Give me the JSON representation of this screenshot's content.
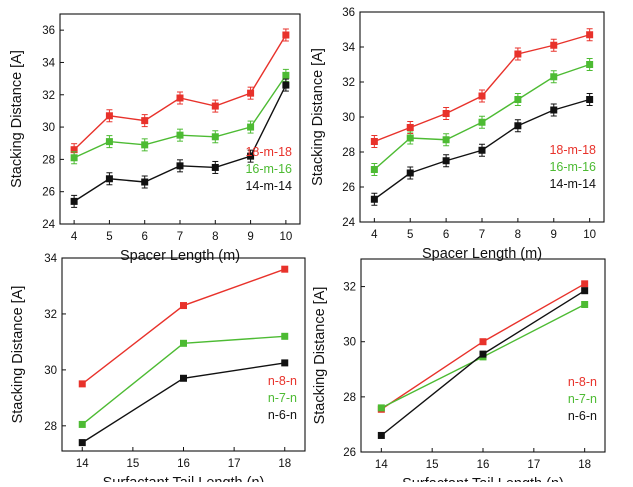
{
  "chart_data": [
    {
      "type": "line",
      "xlabel": "Spacer Length (m)",
      "ylabel": "Stacking Distance [A]",
      "xlim": [
        3.6,
        10.4
      ],
      "ylim": [
        24,
        37
      ],
      "xticks": [
        4,
        5,
        6,
        7,
        8,
        9,
        10
      ],
      "yticks": [
        24,
        26,
        28,
        30,
        32,
        34,
        36
      ],
      "x": [
        4,
        5,
        6,
        7,
        8,
        9,
        10
      ],
      "legend_position": "right",
      "marker": "square",
      "error_bars": true,
      "series": [
        {
          "name": "18-m-18",
          "color": "#e8322b",
          "values": [
            28.6,
            30.7,
            30.4,
            31.8,
            31.3,
            32.1,
            35.7
          ]
        },
        {
          "name": "16-m-16",
          "color": "#4dbb33",
          "values": [
            28.1,
            29.1,
            28.9,
            29.5,
            29.4,
            30.0,
            33.2
          ]
        },
        {
          "name": "14-m-14",
          "color": "#111111",
          "values": [
            25.4,
            26.8,
            26.6,
            27.6,
            27.5,
            28.2,
            32.6
          ]
        }
      ]
    },
    {
      "type": "line",
      "xlabel": "Spacer Length (m)",
      "ylabel": "Stacking Distance [A]",
      "xlim": [
        3.6,
        10.4
      ],
      "ylim": [
        24,
        36
      ],
      "xticks": [
        4,
        5,
        6,
        7,
        8,
        9,
        10
      ],
      "yticks": [
        24,
        26,
        28,
        30,
        32,
        34,
        36
      ],
      "x": [
        4,
        5,
        6,
        7,
        8,
        9,
        10
      ],
      "legend_position": "right",
      "marker": "square",
      "error_bars": true,
      "series": [
        {
          "name": "18-m-18",
          "color": "#e8322b",
          "values": [
            28.6,
            29.4,
            30.2,
            31.2,
            33.6,
            34.1,
            34.7
          ]
        },
        {
          "name": "16-m-16",
          "color": "#4dbb33",
          "values": [
            27.0,
            28.8,
            28.7,
            29.7,
            31.0,
            32.3,
            33.0
          ]
        },
        {
          "name": "14-m-14",
          "color": "#111111",
          "values": [
            25.3,
            26.8,
            27.5,
            28.1,
            29.5,
            30.4,
            31.0
          ]
        }
      ]
    },
    {
      "type": "line",
      "xlabel": "Surfactant Tail Length (n)",
      "ylabel": "Stacking Distance [A]",
      "xlim": [
        13.6,
        18.4
      ],
      "ylim": [
        27.1,
        34
      ],
      "xticks": [
        14,
        15,
        16,
        17,
        18
      ],
      "yticks": [
        28,
        30,
        32,
        34
      ],
      "x": [
        14,
        16,
        18
      ],
      "legend_position": "bottom-right",
      "marker": "square",
      "error_bars": false,
      "series": [
        {
          "name": "n-8-n",
          "color": "#e8322b",
          "values": [
            29.5,
            32.3,
            33.6
          ]
        },
        {
          "name": "n-7-n",
          "color": "#4dbb33",
          "values": [
            28.05,
            30.95,
            31.2
          ]
        },
        {
          "name": "n-6-n",
          "color": "#111111",
          "values": [
            27.4,
            29.7,
            30.25
          ]
        }
      ]
    },
    {
      "type": "line",
      "xlabel": "Surfactant Tail Length (n)",
      "ylabel": "Stacking Distance [A]",
      "xlim": [
        13.6,
        18.4
      ],
      "ylim": [
        26,
        33
      ],
      "xticks": [
        14,
        15,
        16,
        17,
        18
      ],
      "yticks": [
        26,
        28,
        30,
        32
      ],
      "x": [
        14,
        16,
        18
      ],
      "legend_position": "bottom-right",
      "marker": "square",
      "error_bars": false,
      "series": [
        {
          "name": "n-8-n",
          "color": "#e8322b",
          "values": [
            27.55,
            30.0,
            32.1
          ]
        },
        {
          "name": "n-7-n",
          "color": "#4dbb33",
          "values": [
            27.6,
            29.45,
            31.35
          ]
        },
        {
          "name": "n-6-n",
          "color": "#111111",
          "values": [
            26.6,
            29.55,
            31.85
          ]
        }
      ]
    }
  ]
}
